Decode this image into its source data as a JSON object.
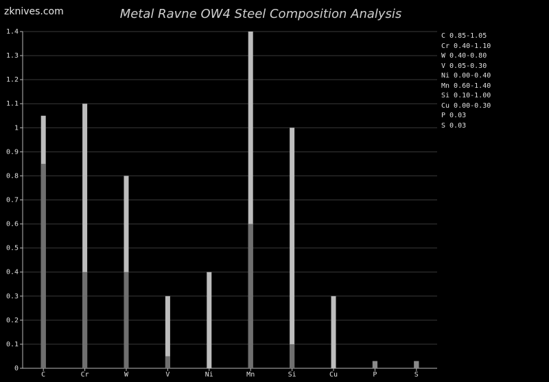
{
  "logo": "zknives.com",
  "title": "Metal Ravne OW4 Steel Composition Analysis",
  "colors": {
    "background": "#000000",
    "grid": "#3a3a3a",
    "axis": "#bdbdbd",
    "bar_max": "#bdbdbd",
    "bar_min": "#6f6f6f"
  },
  "chart_data": {
    "type": "bar",
    "categories": [
      "C",
      "Cr",
      "W",
      "V",
      "Ni",
      "Mn",
      "Si",
      "Cu",
      "P",
      "S"
    ],
    "series": [
      {
        "values_min": [
          0.85,
          0.4,
          0.4,
          0.05,
          0.0,
          0.6,
          0.1,
          0.0,
          0.03,
          0.03
        ]
      },
      {
        "values_max": [
          1.05,
          1.1,
          0.8,
          0.3,
          0.4,
          1.4,
          1.0,
          0.3,
          0.03,
          0.03
        ]
      }
    ],
    "ylim": [
      0,
      1.4
    ],
    "yticks": [
      "0",
      "0.1",
      "0.2",
      "0.3",
      "0.4",
      "0.5",
      "0.6",
      "0.7",
      "0.8",
      "0.9",
      "1",
      "1.1",
      "1.2",
      "1.3",
      "1.4"
    ],
    "grid": true,
    "legend_position": "right",
    "legend": [
      "C 0.85-1.05",
      "Cr 0.40-1.10",
      "W 0.40-0.80",
      "V 0.05-0.30",
      "Ni 0.00-0.40",
      "Mn 0.60-1.40",
      "Si 0.10-1.00",
      "Cu 0.00-0.30",
      "P 0.03",
      "S 0.03"
    ]
  }
}
